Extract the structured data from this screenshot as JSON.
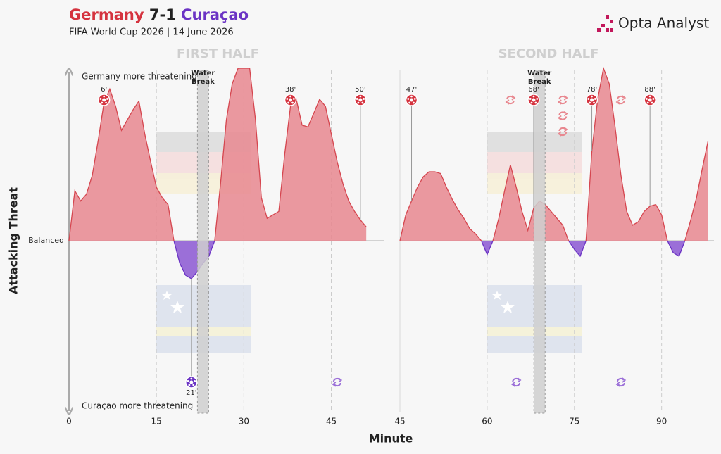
{
  "chart_data": {
    "type": "area",
    "title": {
      "home": "Germany",
      "score": "7-1",
      "away": "Curaçao"
    },
    "subtitle": "FIFA World Cup 2026 | 14 June 2026",
    "brand": "Opta Analyst",
    "home_color": "#d5333f",
    "away_color": "#6b33c4",
    "positive_color": "#e8878f",
    "negative_color": "#9b6fd8",
    "y_label": "Attacking Threat",
    "x_label": "Minute",
    "top_annotation": "Germany more threatening",
    "bottom_annotation": "Curaçao more threatening",
    "ylim": [
      -100,
      100
    ],
    "yticks": [
      {
        "value": 0,
        "label": "Balanced"
      }
    ],
    "grid": true,
    "halves": [
      {
        "title": "FIRST HALF",
        "xlim": [
          0,
          54
        ],
        "xticks": [
          0,
          15,
          30,
          45
        ],
        "x": [
          0,
          1,
          2,
          3,
          4,
          5,
          6,
          7,
          8,
          9,
          10,
          11,
          12,
          13,
          14,
          15,
          16,
          17,
          18,
          19,
          20,
          21,
          22,
          23,
          24,
          25,
          26,
          27,
          28,
          29,
          30,
          31,
          32,
          33,
          34,
          35,
          36,
          37,
          38,
          39,
          40,
          41,
          42,
          43,
          44,
          45,
          46,
          47,
          48,
          49,
          50,
          51
        ],
        "values": [
          0,
          29,
          23,
          27,
          38,
          58,
          80,
          88,
          78,
          64,
          70,
          76,
          81,
          62,
          46,
          31,
          25,
          21,
          0,
          -13,
          -20,
          -22,
          -18,
          -13,
          -9,
          0,
          33,
          70,
          91,
          100,
          100,
          100,
          70,
          25,
          13,
          15,
          17,
          50,
          78,
          82,
          67,
          66,
          74,
          82,
          78,
          62,
          46,
          33,
          23,
          17,
          12,
          8
        ],
        "water_break": {
          "label": [
            "Water",
            "Break"
          ],
          "minute": 23
        }
      },
      {
        "title": "SECOND HALF",
        "xlim": [
          45,
          99
        ],
        "xticks": [
          45,
          60,
          75,
          90
        ],
        "x": [
          45,
          46,
          47,
          48,
          49,
          50,
          51,
          52,
          53,
          54,
          55,
          56,
          57,
          58,
          59,
          60,
          61,
          62,
          63,
          64,
          65,
          66,
          67,
          68,
          69,
          70,
          71,
          72,
          73,
          74,
          75,
          76,
          77,
          78,
          79,
          80,
          81,
          82,
          83,
          84,
          85,
          86,
          87,
          88,
          89,
          90,
          91,
          92,
          93,
          94,
          95,
          96,
          97,
          98
        ],
        "values": [
          0,
          15,
          23,
          31,
          37,
          40,
          40,
          39,
          31,
          24,
          18,
          13,
          7,
          4,
          0,
          -8,
          0,
          13,
          29,
          44,
          31,
          17,
          6,
          19,
          23,
          21,
          17,
          13,
          9,
          0,
          -5,
          -9,
          0,
          52,
          82,
          100,
          91,
          66,
          38,
          17,
          9,
          11,
          17,
          20,
          21,
          15,
          0,
          -7,
          -9,
          0,
          12,
          25,
          42,
          58
        ],
        "water_break": {
          "label": [
            "Water",
            "Break"
          ],
          "minute": 69
        }
      }
    ],
    "goals": [
      {
        "team": "home",
        "half": 0,
        "minute": 6,
        "label": "6'"
      },
      {
        "team": "away",
        "half": 0,
        "minute": 21,
        "label": "21'"
      },
      {
        "team": "home",
        "half": 0,
        "minute": 38,
        "label": "38'"
      },
      {
        "team": "home",
        "half": 0,
        "minute": 50,
        "label": "50'",
        "penalty": true
      },
      {
        "team": "home",
        "half": 1,
        "minute": 47,
        "label": "47'"
      },
      {
        "team": "home",
        "half": 1,
        "minute": 68,
        "label": "68'"
      },
      {
        "team": "home",
        "half": 1,
        "minute": 78,
        "label": "78'"
      },
      {
        "team": "home",
        "half": 1,
        "minute": 88,
        "label": "88'"
      }
    ],
    "substitutions": {
      "home": [
        64,
        73,
        73,
        73,
        83
      ],
      "away": [
        46,
        65,
        83
      ]
    }
  }
}
